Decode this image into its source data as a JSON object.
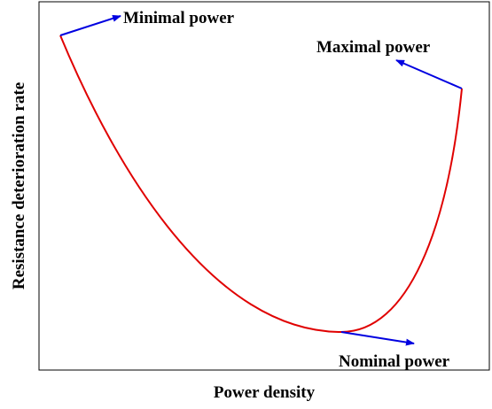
{
  "x_axis_label": "Power density",
  "y_axis_label": "Resistance deterioration rate",
  "annotations": {
    "minimal": "Minimal power",
    "maximal": "Maximal power",
    "nominal": "Nominal power"
  }
}
